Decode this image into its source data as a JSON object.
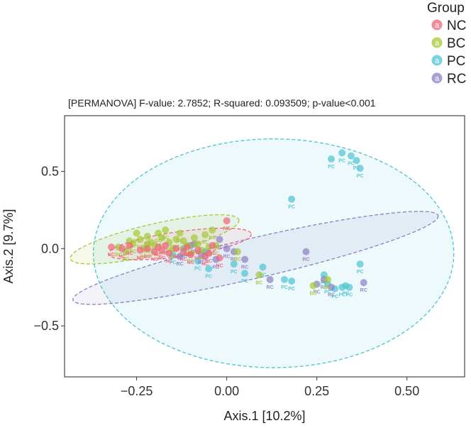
{
  "chart_data": {
    "type": "scatter",
    "title": "",
    "subtitle": "[PERMANOVA] F-value: 2.7852; R-squared: 0.093509; p-value<0.001",
    "xlabel": "Axis.1 [10.2%]",
    "ylabel": "Axis.2 [9.7%]",
    "xlim": [
      -0.45,
      0.66
    ],
    "ylim": [
      -0.83,
      0.86
    ],
    "xticks": [
      -0.25,
      0.0,
      0.25,
      0.5
    ],
    "xtick_labels": [
      "−0.25",
      "0.00",
      "0.25",
      "0.50"
    ],
    "yticks": [
      0.5,
      0.0,
      -0.5
    ],
    "ytick_labels": [
      "0.5",
      "0.0",
      "−0.5"
    ],
    "grid": false,
    "legend": {
      "title": "Group",
      "position": "top-right",
      "key_letter": "a",
      "entries": [
        {
          "name": "NC",
          "color": "#f0637a"
        },
        {
          "name": "BC",
          "color": "#a5c832"
        },
        {
          "name": "PC",
          "color": "#4bc4d4"
        },
        {
          "name": "RC",
          "color": "#8b7fc4"
        }
      ]
    },
    "ellipses": [
      {
        "group": "PC",
        "cx": 0.13,
        "cy": -0.03,
        "rx": 0.5,
        "ry": 0.74,
        "angle_deg": 0
      },
      {
        "group": "RC",
        "cx": 0.08,
        "cy": -0.06,
        "rx": 0.52,
        "ry": 0.13,
        "angle_deg": -13
      },
      {
        "group": "BC",
        "cx": -0.2,
        "cy": 0.06,
        "rx": 0.24,
        "ry": 0.1,
        "angle_deg": -13
      },
      {
        "group": "NC",
        "cx": -0.13,
        "cy": 0.03,
        "rx": 0.2,
        "ry": 0.08,
        "angle_deg": -8
      }
    ],
    "series": [
      {
        "name": "PC",
        "color": "#4bc4d4",
        "points": [
          [
            0.29,
            0.58
          ],
          [
            0.32,
            0.62
          ],
          [
            0.345,
            0.6
          ],
          [
            0.36,
            0.57
          ],
          [
            0.37,
            0.52
          ],
          [
            0.18,
            0.32
          ],
          [
            0.37,
            -0.1
          ],
          [
            0.27,
            -0.17
          ],
          [
            0.28,
            -0.23
          ],
          [
            0.3,
            -0.26
          ],
          [
            0.32,
            -0.25
          ],
          [
            0.33,
            -0.24
          ],
          [
            0.34,
            -0.25
          ],
          [
            0.16,
            -0.2
          ],
          [
            0.18,
            -0.21
          ],
          [
            0.1,
            -0.12
          ],
          [
            0.05,
            -0.16
          ],
          [
            -0.05,
            -0.13
          ],
          [
            -0.08,
            -0.08
          ],
          [
            -0.12,
            0.0
          ],
          [
            -0.15,
            -0.04
          ],
          [
            -0.06,
            -0.02
          ],
          [
            0.02,
            -0.1
          ]
        ]
      },
      {
        "name": "RC",
        "color": "#8b7fc4",
        "points": [
          [
            0.22,
            -0.02
          ],
          [
            0.38,
            -0.22
          ],
          [
            0.27,
            -0.2
          ],
          [
            0.25,
            -0.23
          ],
          [
            0.29,
            -0.25
          ],
          [
            0.12,
            -0.2
          ],
          [
            0.05,
            -0.07
          ],
          [
            0.0,
            0.0
          ],
          [
            -0.03,
            -0.07
          ],
          [
            -0.07,
            -0.04
          ],
          [
            -0.1,
            0.02
          ],
          [
            -0.13,
            -0.05
          ],
          [
            -0.02,
            0.06
          ],
          [
            0.02,
            -0.02
          ],
          [
            -0.09,
            0.03
          ]
        ]
      },
      {
        "name": "BC",
        "color": "#a5c832",
        "points": [
          [
            -0.3,
            0.01
          ],
          [
            -0.28,
            -0.02
          ],
          [
            -0.26,
            0.03
          ],
          [
            -0.25,
            0.1
          ],
          [
            -0.24,
            0.06
          ],
          [
            -0.23,
            0.0
          ],
          [
            -0.22,
            0.08
          ],
          [
            -0.21,
            0.04
          ],
          [
            -0.2,
            0.02
          ],
          [
            -0.19,
            0.1
          ],
          [
            -0.18,
            0.07
          ],
          [
            -0.17,
            0.12
          ],
          [
            -0.16,
            0.04
          ],
          [
            -0.15,
            0.0
          ],
          [
            -0.14,
            0.06
          ],
          [
            -0.13,
            0.1
          ],
          [
            -0.12,
            0.05
          ],
          [
            -0.11,
            0.02
          ],
          [
            -0.1,
            -0.03
          ],
          [
            -0.09,
            0.07
          ],
          [
            -0.08,
            0.03
          ],
          [
            -0.07,
            -0.01
          ],
          [
            -0.06,
            0.09
          ],
          [
            -0.05,
            0.01
          ],
          [
            -0.04,
            0.12
          ],
          [
            -0.03,
            0.02
          ],
          [
            0.03,
            -0.02
          ],
          [
            0.09,
            -0.17
          ],
          [
            0.24,
            -0.24
          ],
          [
            0.28,
            -0.2
          ],
          [
            -0.27,
            0.05
          ],
          [
            -0.22,
            0.03
          ]
        ]
      },
      {
        "name": "NC",
        "color": "#f0637a",
        "points": [
          [
            -0.32,
            0.01
          ],
          [
            -0.29,
            0.0
          ],
          [
            -0.27,
            0.02
          ],
          [
            -0.24,
            -0.01
          ],
          [
            -0.22,
            0.0
          ],
          [
            -0.2,
            -0.02
          ],
          [
            -0.18,
            -0.01
          ],
          [
            -0.16,
            -0.03
          ],
          [
            -0.14,
            0.0
          ],
          [
            -0.12,
            -0.02
          ],
          [
            -0.1,
            -0.04
          ],
          [
            -0.08,
            -0.01
          ],
          [
            -0.06,
            -0.05
          ],
          [
            -0.04,
            0.02
          ],
          [
            -0.02,
            -0.06
          ],
          [
            0.0,
            0.18
          ],
          [
            -0.17,
            0.02
          ],
          [
            -0.11,
            0.01
          ],
          [
            -0.05,
            -0.03
          ],
          [
            -0.19,
            0.01
          ]
        ]
      }
    ]
  }
}
